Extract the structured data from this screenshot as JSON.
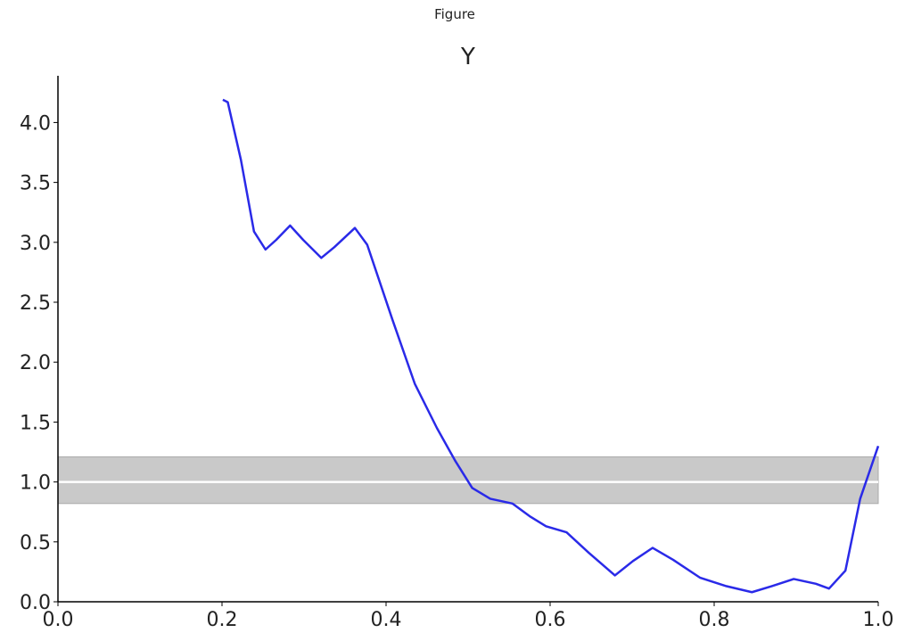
{
  "window_title": "Figure",
  "chart_data": {
    "type": "line",
    "title": "Y",
    "x": [
      0.201,
      0.207,
      0.223,
      0.239,
      0.253,
      0.266,
      0.283,
      0.299,
      0.321,
      0.337,
      0.362,
      0.377,
      0.408,
      0.435,
      0.462,
      0.484,
      0.505,
      0.527,
      0.554,
      0.576,
      0.595,
      0.62,
      0.647,
      0.679,
      0.701,
      0.725,
      0.75,
      0.783,
      0.815,
      0.846,
      0.87,
      0.897,
      0.924,
      0.94,
      0.96,
      0.978,
      1.0
    ],
    "series": [
      {
        "color": "#2a2ae8",
        "values": [
          4.19,
          4.17,
          3.69,
          3.09,
          2.94,
          3.02,
          3.14,
          3.02,
          2.87,
          2.96,
          3.12,
          2.98,
          2.35,
          1.82,
          1.45,
          1.18,
          0.95,
          0.86,
          0.82,
          0.71,
          0.63,
          0.58,
          0.41,
          0.22,
          0.34,
          0.45,
          0.35,
          0.2,
          0.13,
          0.08,
          0.13,
          0.19,
          0.15,
          0.11,
          0.26,
          0.86,
          1.3
        ]
      }
    ],
    "band": {
      "lower": 0.82,
      "upper": 1.21,
      "color": "#c9c9c9"
    },
    "reference": 1,
    "xlim": [
      0,
      1
    ],
    "ylim": [
      0,
      4.39
    ],
    "xticks": [
      {
        "value": 0,
        "label": "0.0"
      },
      0.2,
      0.4,
      0.6,
      0.8,
      {
        "value": 1,
        "label": "1.0"
      }
    ],
    "yticks": [
      {
        "value": 0,
        "label": "0.0"
      },
      0.5,
      {
        "value": 1,
        "label": "1.0"
      },
      1.5,
      {
        "value": 2,
        "label": "2.0"
      },
      2.5,
      {
        "value": 3,
        "label": "3.0"
      },
      3.5,
      {
        "value": 4,
        "label": "4.0"
      }
    ]
  }
}
